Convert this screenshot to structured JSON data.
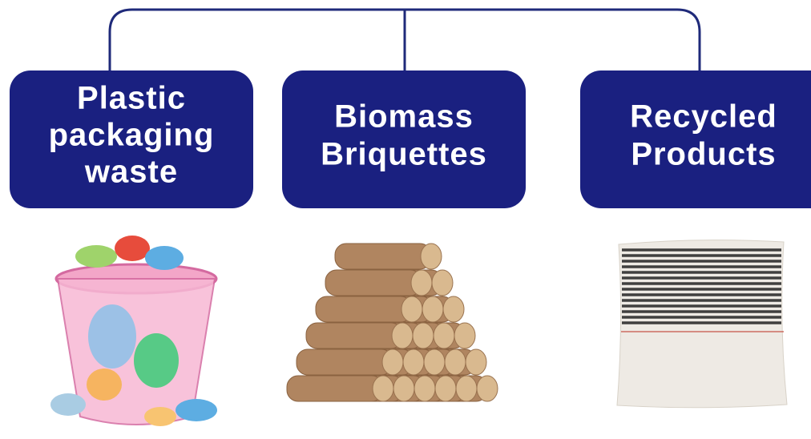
{
  "nodes": [
    {
      "lines": [
        "Plastic",
        "packaging",
        "waste"
      ]
    },
    {
      "lines": [
        "Biomass",
        "Briquettes"
      ]
    },
    {
      "lines": [
        "Recycled",
        "Products"
      ]
    }
  ]
}
